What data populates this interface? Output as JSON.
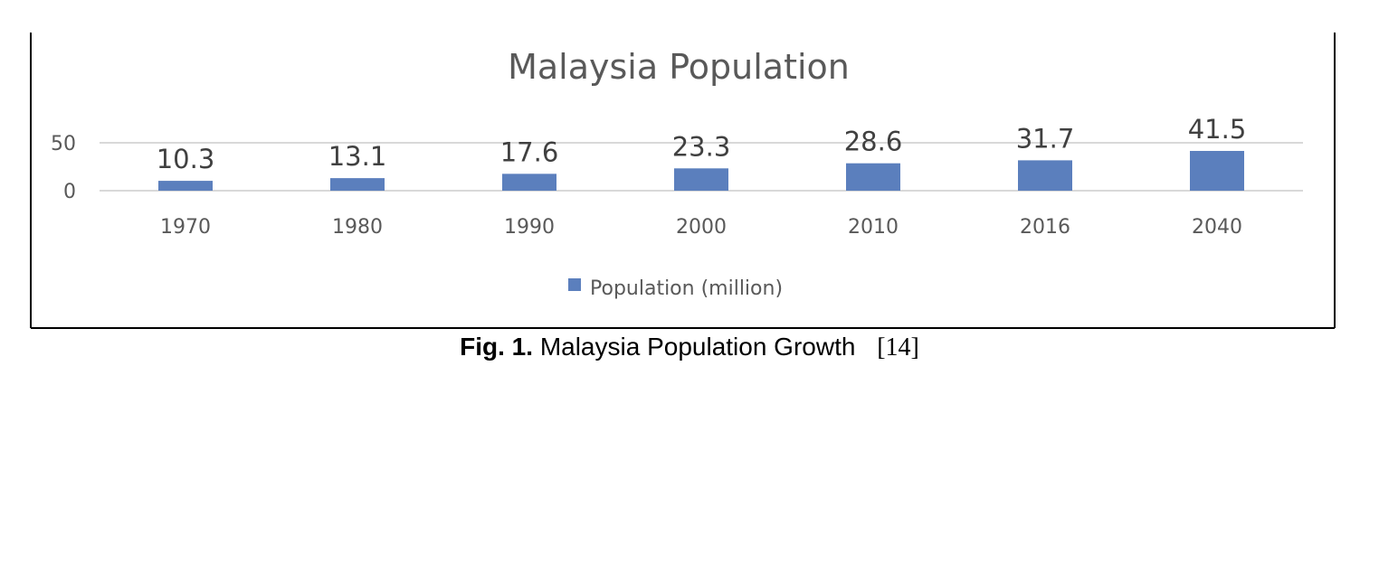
{
  "chart_data": {
    "type": "bar",
    "title": "Malaysia Population",
    "categories": [
      "1970",
      "1980",
      "1990",
      "2000",
      "2010",
      "2016",
      "2040"
    ],
    "series": [
      {
        "name": "Population (million)",
        "values": [
          10.3,
          13.1,
          17.6,
          23.3,
          28.6,
          31.7,
          41.5
        ],
        "color": "#5b7fbd"
      }
    ],
    "y_ticks": [
      "0",
      "50"
    ],
    "ylim": [
      0,
      50
    ],
    "grid": true,
    "legend_position": "bottom",
    "data_labels": true
  },
  "caption": {
    "figure_number": "Fig. 1.",
    "text": "Malaysia Population Growth",
    "citation": "[14]"
  }
}
